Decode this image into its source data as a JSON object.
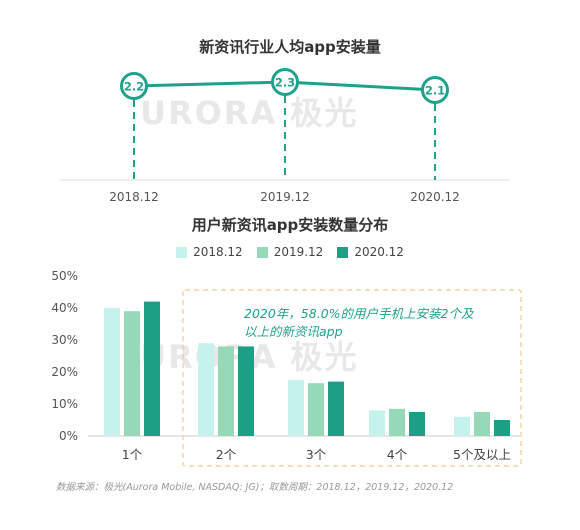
{
  "colors": {
    "accent": "#1fa18a",
    "s2018": "#c6f2ee",
    "s2019": "#96d9b8",
    "s2020": "#1d9f86",
    "annotation": "#1fa18a",
    "annotation_box": "#f3c98e"
  },
  "watermark": "URORA 极光",
  "annotation": "2020年，58.0%的用户手机上安装2个及以上的新资讯app",
  "source": "数据来源：极光(Aurora Mobile, NASDAQ: JG)；取数周期：2018.12，2019.12，2020.12",
  "chart_data": [
    {
      "type": "line",
      "title": "新资讯行业人均app安装量",
      "x": [
        "2018.12",
        "2019.12",
        "2020.12"
      ],
      "series": [
        {
          "values": [
            2.2,
            2.3,
            2.1
          ]
        }
      ]
    },
    {
      "type": "bar",
      "title": "用户新资讯app安装数量分布",
      "categories": [
        "1个",
        "2个",
        "3个",
        "4个",
        "5个及以上"
      ],
      "ylim": [
        0,
        50
      ],
      "yticks": [
        "0%",
        "10%",
        "20%",
        "30%",
        "40%",
        "50%"
      ],
      "series": [
        {
          "name": "2018.12",
          "values": [
            40,
            29,
            17.5,
            8,
            6
          ]
        },
        {
          "name": "2019.12",
          "values": [
            39,
            28,
            16.5,
            8.5,
            7.5
          ]
        },
        {
          "name": "2020.12",
          "values": [
            42,
            28,
            17,
            7.5,
            5
          ]
        }
      ]
    }
  ]
}
